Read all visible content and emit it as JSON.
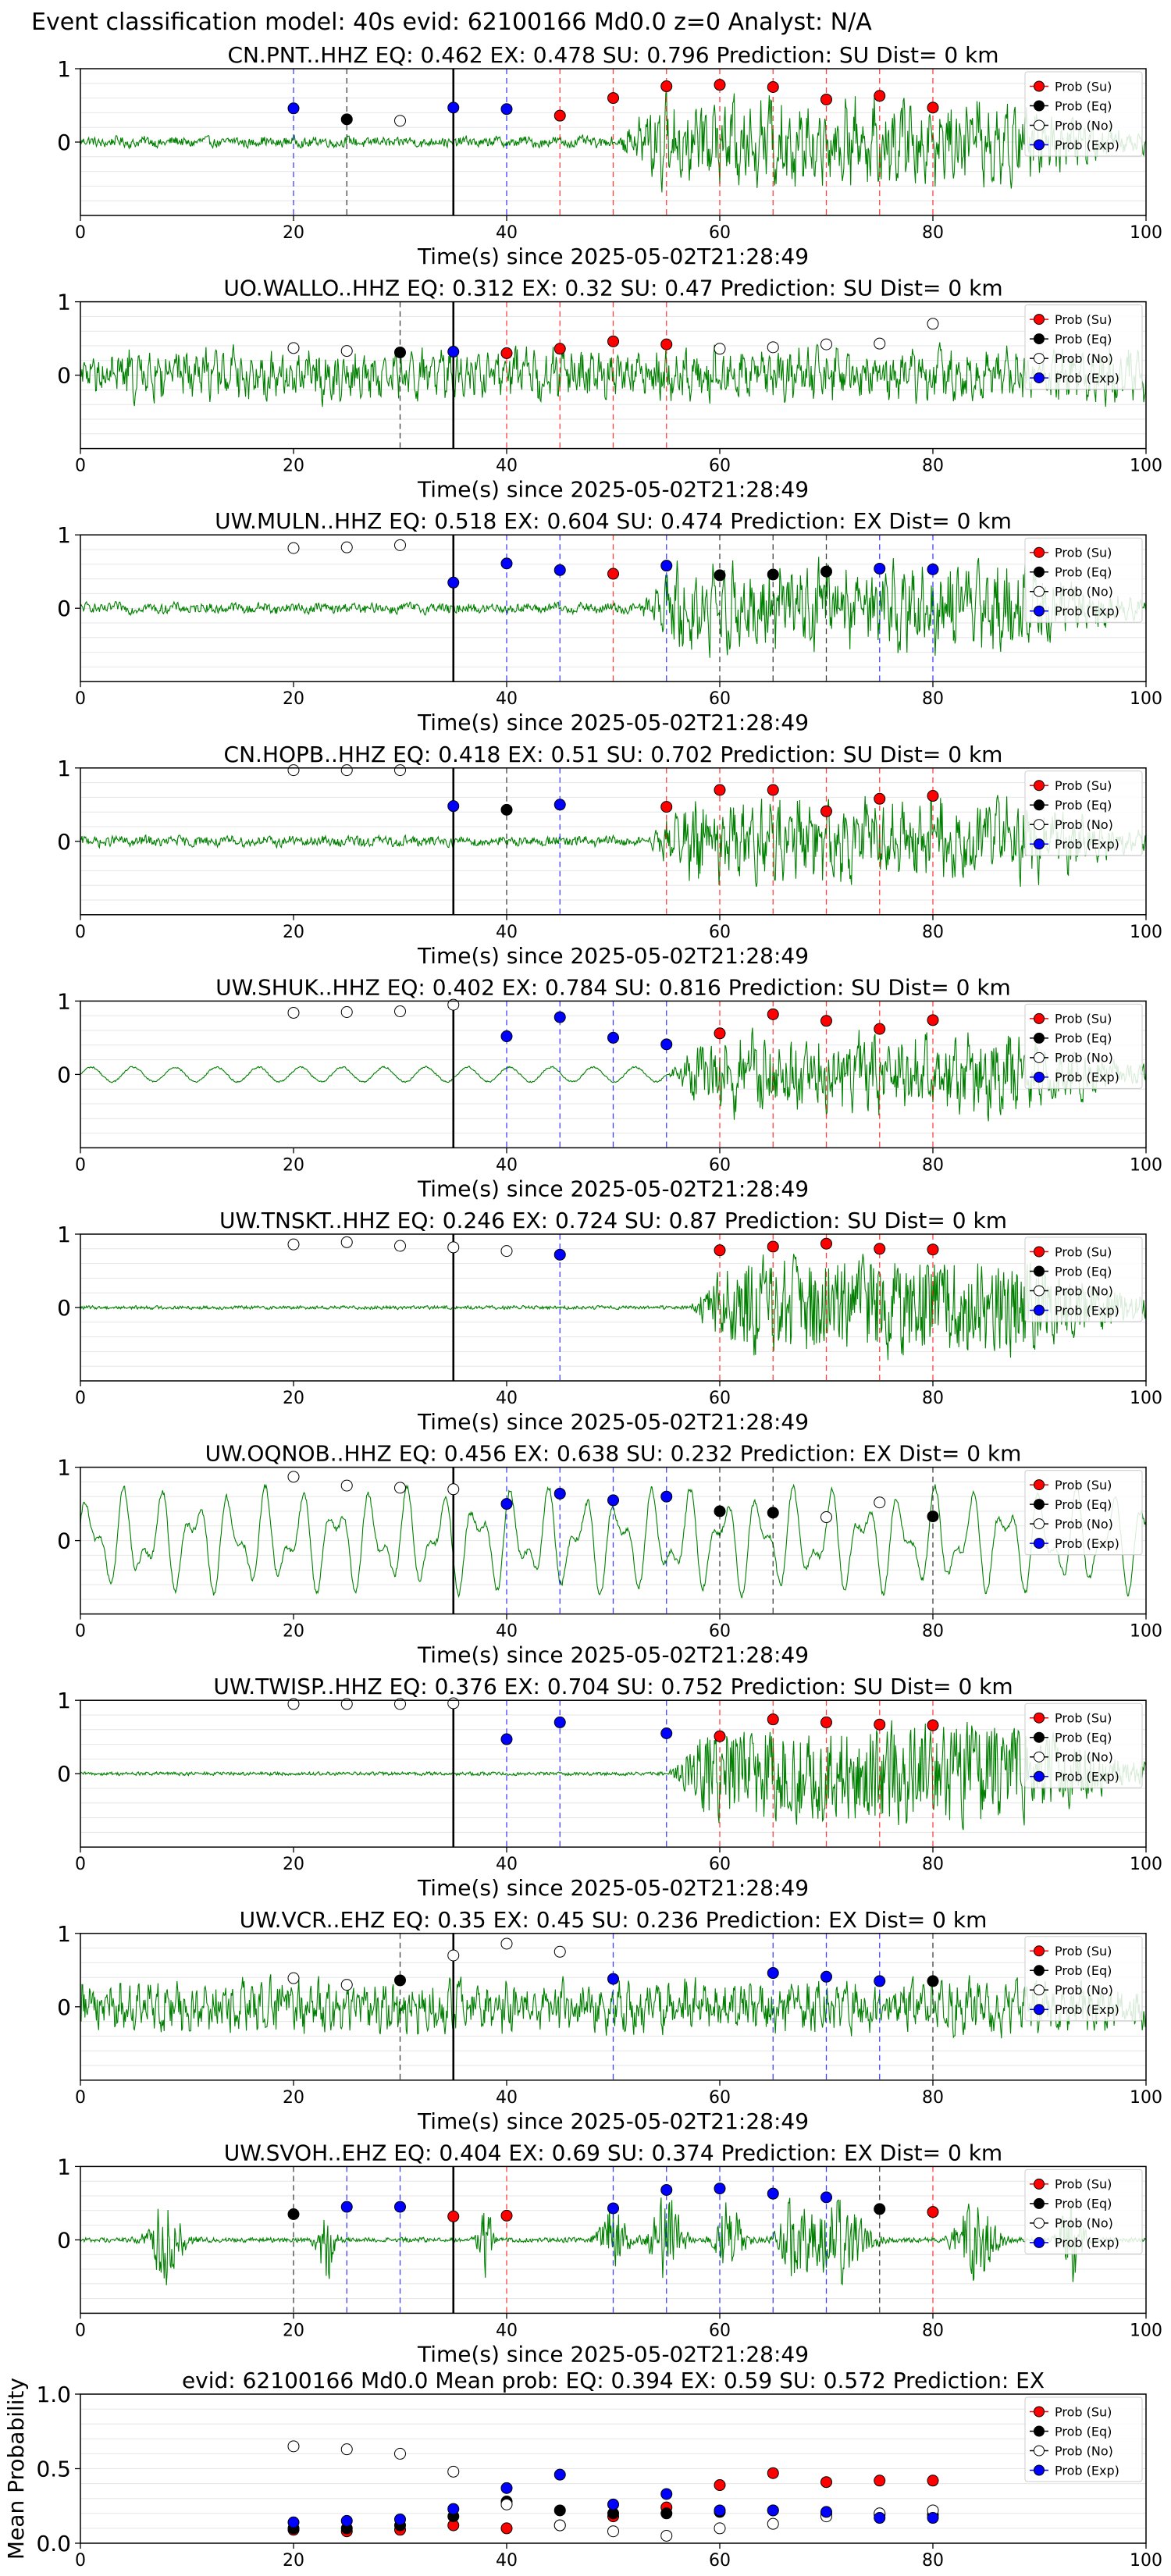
{
  "figure": {
    "title": "Event classification model: 40s evid: 62100166 Md0.0 z=0 Analyst: N/A"
  },
  "legend_labels": [
    "Prob (Su)",
    "Prob (Eq)",
    "Prob (No)",
    "Prob (Exp)"
  ],
  "colors": {
    "su": "#ff0000",
    "eq": "#000000",
    "no": "#ffffff",
    "exp": "#0000ff",
    "waveform": "#008000",
    "pick_line": "#000000"
  },
  "chart_data": [
    {
      "type": "scatter",
      "station": "CN.PNT..HHZ",
      "title": "CN.PNT..HHZ   EQ: 0.462  EX: 0.478  SU: 0.796   Prediction: SU    Dist= 0 km",
      "xlabel": "Time(s) since 2025-05-02T21:28:49",
      "xlim": [
        0,
        100
      ],
      "ylim": [
        -1,
        1
      ],
      "xticks": [
        0,
        20,
        40,
        60,
        80,
        100
      ],
      "yticks": [
        0,
        1
      ],
      "pick_time": 35,
      "signal": {
        "style": "noisy",
        "onset": 50
      },
      "points": [
        {
          "t": 20,
          "p": 0.46,
          "class": "exp"
        },
        {
          "t": 25,
          "p": 0.31,
          "class": "eq"
        },
        {
          "t": 30,
          "p": 0.29,
          "class": "no"
        },
        {
          "t": 35,
          "p": 0.47,
          "class": "exp"
        },
        {
          "t": 40,
          "p": 0.45,
          "class": "exp"
        },
        {
          "t": 45,
          "p": 0.36,
          "class": "su"
        },
        {
          "t": 50,
          "p": 0.6,
          "class": "su"
        },
        {
          "t": 55,
          "p": 0.76,
          "class": "su"
        },
        {
          "t": 60,
          "p": 0.78,
          "class": "su"
        },
        {
          "t": 65,
          "p": 0.75,
          "class": "su"
        },
        {
          "t": 70,
          "p": 0.58,
          "class": "su"
        },
        {
          "t": 75,
          "p": 0.63,
          "class": "su"
        },
        {
          "t": 80,
          "p": 0.47,
          "class": "su"
        }
      ]
    },
    {
      "type": "scatter",
      "station": "UO.WALLO..HHZ",
      "title": "UO.WALLO..HHZ   EQ: 0.312  EX: 0.32  SU: 0.47   Prediction: SU    Dist= 0 km",
      "xlabel": "Time(s) since 2025-05-02T21:28:49",
      "xlim": [
        0,
        100
      ],
      "ylim": [
        -1,
        1
      ],
      "xticks": [
        0,
        20,
        40,
        60,
        80,
        100
      ],
      "yticks": [
        0,
        1
      ],
      "pick_time": 35,
      "signal": {
        "style": "noisy",
        "onset": 0
      },
      "points": [
        {
          "t": 20,
          "p": 0.37,
          "class": "no"
        },
        {
          "t": 25,
          "p": 0.33,
          "class": "no"
        },
        {
          "t": 30,
          "p": 0.31,
          "class": "eq"
        },
        {
          "t": 35,
          "p": 0.32,
          "class": "exp"
        },
        {
          "t": 40,
          "p": 0.3,
          "class": "su"
        },
        {
          "t": 45,
          "p": 0.36,
          "class": "su"
        },
        {
          "t": 50,
          "p": 0.46,
          "class": "su"
        },
        {
          "t": 55,
          "p": 0.42,
          "class": "su"
        },
        {
          "t": 60,
          "p": 0.36,
          "class": "no"
        },
        {
          "t": 65,
          "p": 0.38,
          "class": "no"
        },
        {
          "t": 70,
          "p": 0.42,
          "class": "no"
        },
        {
          "t": 75,
          "p": 0.43,
          "class": "no"
        },
        {
          "t": 80,
          "p": 0.7,
          "class": "no"
        }
      ]
    },
    {
      "type": "scatter",
      "station": "UW.MULN..HHZ",
      "title": "UW.MULN..HHZ   EQ: 0.518  EX: 0.604  SU: 0.474   Prediction: EX    Dist= 0 km",
      "xlabel": "Time(s) since 2025-05-02T21:28:49",
      "xlim": [
        0,
        100
      ],
      "ylim": [
        -1,
        1
      ],
      "xticks": [
        0,
        20,
        40,
        60,
        80,
        100
      ],
      "yticks": [
        0,
        1
      ],
      "pick_time": 35,
      "signal": {
        "style": "noisy",
        "onset": 52
      },
      "points": [
        {
          "t": 20,
          "p": 0.82,
          "class": "no"
        },
        {
          "t": 25,
          "p": 0.83,
          "class": "no"
        },
        {
          "t": 30,
          "p": 0.86,
          "class": "no"
        },
        {
          "t": 35,
          "p": 0.35,
          "class": "exp"
        },
        {
          "t": 40,
          "p": 0.61,
          "class": "exp"
        },
        {
          "t": 45,
          "p": 0.52,
          "class": "exp"
        },
        {
          "t": 50,
          "p": 0.47,
          "class": "su"
        },
        {
          "t": 55,
          "p": 0.58,
          "class": "exp"
        },
        {
          "t": 60,
          "p": 0.45,
          "class": "eq"
        },
        {
          "t": 65,
          "p": 0.46,
          "class": "eq"
        },
        {
          "t": 70,
          "p": 0.5,
          "class": "eq"
        },
        {
          "t": 75,
          "p": 0.54,
          "class": "exp"
        },
        {
          "t": 80,
          "p": 0.53,
          "class": "exp"
        }
      ]
    },
    {
      "type": "scatter",
      "station": "CN.HOPB..HHZ",
      "title": "CN.HOPB..HHZ   EQ: 0.418  EX: 0.51  SU: 0.702   Prediction: SU    Dist= 0 km",
      "xlabel": "Time(s) since 2025-05-02T21:28:49",
      "xlim": [
        0,
        100
      ],
      "ylim": [
        -1,
        1
      ],
      "xticks": [
        0,
        20,
        40,
        60,
        80,
        100
      ],
      "yticks": [
        0,
        1
      ],
      "pick_time": 35,
      "signal": {
        "style": "noisy",
        "onset": 53
      },
      "points": [
        {
          "t": 20,
          "p": 0.97,
          "class": "no"
        },
        {
          "t": 25,
          "p": 0.97,
          "class": "no"
        },
        {
          "t": 30,
          "p": 0.97,
          "class": "no"
        },
        {
          "t": 35,
          "p": 0.48,
          "class": "exp"
        },
        {
          "t": 40,
          "p": 0.43,
          "class": "eq"
        },
        {
          "t": 45,
          "p": 0.5,
          "class": "exp"
        },
        {
          "t": 55,
          "p": 0.47,
          "class": "su"
        },
        {
          "t": 60,
          "p": 0.7,
          "class": "su"
        },
        {
          "t": 65,
          "p": 0.7,
          "class": "su"
        },
        {
          "t": 70,
          "p": 0.41,
          "class": "su"
        },
        {
          "t": 75,
          "p": 0.58,
          "class": "su"
        },
        {
          "t": 80,
          "p": 0.62,
          "class": "su"
        }
      ]
    },
    {
      "type": "scatter",
      "station": "UW.SHUK..HHZ",
      "title": "UW.SHUK..HHZ   EQ: 0.402  EX: 0.784  SU: 0.816   Prediction: SU    Dist= 0 km",
      "xlabel": "Time(s) since 2025-05-02T21:28:49",
      "xlim": [
        0,
        100
      ],
      "ylim": [
        -1,
        1
      ],
      "xticks": [
        0,
        20,
        40,
        60,
        80,
        100
      ],
      "yticks": [
        0,
        1
      ],
      "pick_time": 35,
      "signal": {
        "style": "wavy_then_noisy",
        "onset": 55
      },
      "points": [
        {
          "t": 20,
          "p": 0.84,
          "class": "no"
        },
        {
          "t": 25,
          "p": 0.85,
          "class": "no"
        },
        {
          "t": 30,
          "p": 0.86,
          "class": "no"
        },
        {
          "t": 35,
          "p": 0.95,
          "class": "no"
        },
        {
          "t": 40,
          "p": 0.52,
          "class": "exp"
        },
        {
          "t": 45,
          "p": 0.78,
          "class": "exp"
        },
        {
          "t": 50,
          "p": 0.5,
          "class": "exp"
        },
        {
          "t": 55,
          "p": 0.41,
          "class": "exp"
        },
        {
          "t": 60,
          "p": 0.56,
          "class": "su"
        },
        {
          "t": 65,
          "p": 0.82,
          "class": "su"
        },
        {
          "t": 70,
          "p": 0.73,
          "class": "su"
        },
        {
          "t": 75,
          "p": 0.62,
          "class": "su"
        },
        {
          "t": 80,
          "p": 0.74,
          "class": "su"
        }
      ]
    },
    {
      "type": "scatter",
      "station": "UW.TNSKT..HHZ",
      "title": "UW.TNSKT..HHZ   EQ: 0.246  EX: 0.724  SU: 0.87   Prediction: SU    Dist= 0 km",
      "xlabel": "Time(s) since 2025-05-02T21:28:49",
      "xlim": [
        0,
        100
      ],
      "ylim": [
        -1,
        1
      ],
      "xticks": [
        0,
        20,
        40,
        60,
        80,
        100
      ],
      "yticks": [
        0,
        1
      ],
      "pick_time": 35,
      "signal": {
        "style": "flat_then_noisy",
        "onset": 57
      },
      "points": [
        {
          "t": 20,
          "p": 0.86,
          "class": "no"
        },
        {
          "t": 25,
          "p": 0.89,
          "class": "no"
        },
        {
          "t": 30,
          "p": 0.84,
          "class": "no"
        },
        {
          "t": 35,
          "p": 0.82,
          "class": "no"
        },
        {
          "t": 40,
          "p": 0.77,
          "class": "no"
        },
        {
          "t": 45,
          "p": 0.72,
          "class": "exp"
        },
        {
          "t": 60,
          "p": 0.78,
          "class": "su"
        },
        {
          "t": 65,
          "p": 0.83,
          "class": "su"
        },
        {
          "t": 70,
          "p": 0.87,
          "class": "su"
        },
        {
          "t": 75,
          "p": 0.8,
          "class": "su"
        },
        {
          "t": 80,
          "p": 0.79,
          "class": "su"
        }
      ]
    },
    {
      "type": "scatter",
      "station": "UW.OQNOB..HHZ",
      "title": "UW.OQNOB..HHZ   EQ: 0.456  EX: 0.638  SU: 0.232   Prediction: EX    Dist= 0 km",
      "xlabel": "Time(s) since 2025-05-02T21:28:49",
      "xlim": [
        0,
        100
      ],
      "ylim": [
        -1,
        1
      ],
      "xticks": [
        0,
        20,
        40,
        60,
        80,
        100
      ],
      "yticks": [
        0,
        1
      ],
      "pick_time": 35,
      "signal": {
        "style": "wavy",
        "onset": 0
      },
      "points": [
        {
          "t": 20,
          "p": 0.87,
          "class": "no"
        },
        {
          "t": 25,
          "p": 0.75,
          "class": "no"
        },
        {
          "t": 30,
          "p": 0.72,
          "class": "no"
        },
        {
          "t": 35,
          "p": 0.7,
          "class": "no"
        },
        {
          "t": 40,
          "p": 0.5,
          "class": "exp"
        },
        {
          "t": 45,
          "p": 0.64,
          "class": "exp"
        },
        {
          "t": 50,
          "p": 0.55,
          "class": "exp"
        },
        {
          "t": 55,
          "p": 0.6,
          "class": "exp"
        },
        {
          "t": 60,
          "p": 0.4,
          "class": "eq"
        },
        {
          "t": 65,
          "p": 0.38,
          "class": "eq"
        },
        {
          "t": 70,
          "p": 0.32,
          "class": "no"
        },
        {
          "t": 75,
          "p": 0.52,
          "class": "no"
        },
        {
          "t": 80,
          "p": 0.33,
          "class": "eq"
        }
      ]
    },
    {
      "type": "scatter",
      "station": "UW.TWISP..HHZ",
      "title": "UW.TWISP..HHZ   EQ: 0.376  EX: 0.704  SU: 0.752   Prediction: SU    Dist= 0 km",
      "xlabel": "Time(s) since 2025-05-02T21:28:49",
      "xlim": [
        0,
        100
      ],
      "ylim": [
        -1,
        1
      ],
      "xticks": [
        0,
        20,
        40,
        60,
        80,
        100
      ],
      "yticks": [
        0,
        1
      ],
      "pick_time": 35,
      "signal": {
        "style": "flat_then_noisy",
        "onset": 55
      },
      "points": [
        {
          "t": 20,
          "p": 0.95,
          "class": "no"
        },
        {
          "t": 25,
          "p": 0.95,
          "class": "no"
        },
        {
          "t": 30,
          "p": 0.95,
          "class": "no"
        },
        {
          "t": 35,
          "p": 0.96,
          "class": "no"
        },
        {
          "t": 40,
          "p": 0.47,
          "class": "exp"
        },
        {
          "t": 45,
          "p": 0.7,
          "class": "exp"
        },
        {
          "t": 55,
          "p": 0.55,
          "class": "exp"
        },
        {
          "t": 60,
          "p": 0.51,
          "class": "su"
        },
        {
          "t": 65,
          "p": 0.74,
          "class": "su"
        },
        {
          "t": 70,
          "p": 0.7,
          "class": "su"
        },
        {
          "t": 75,
          "p": 0.67,
          "class": "su"
        },
        {
          "t": 80,
          "p": 0.66,
          "class": "su"
        }
      ]
    },
    {
      "type": "scatter",
      "station": "UW.VCR..EHZ",
      "title": "UW.VCR..EHZ   EQ: 0.35  EX: 0.45  SU: 0.236   Prediction: EX    Dist= 0 km",
      "xlabel": "Time(s) since 2025-05-02T21:28:49",
      "xlim": [
        0,
        100
      ],
      "ylim": [
        -1,
        1
      ],
      "xticks": [
        0,
        20,
        40,
        60,
        80,
        100
      ],
      "yticks": [
        0,
        1
      ],
      "pick_time": 35,
      "signal": {
        "style": "noisy",
        "onset": 0
      },
      "points": [
        {
          "t": 20,
          "p": 0.39,
          "class": "no"
        },
        {
          "t": 25,
          "p": 0.3,
          "class": "no"
        },
        {
          "t": 30,
          "p": 0.36,
          "class": "eq"
        },
        {
          "t": 35,
          "p": 0.7,
          "class": "no"
        },
        {
          "t": 40,
          "p": 0.86,
          "class": "no"
        },
        {
          "t": 45,
          "p": 0.75,
          "class": "no"
        },
        {
          "t": 50,
          "p": 0.38,
          "class": "exp"
        },
        {
          "t": 65,
          "p": 0.46,
          "class": "exp"
        },
        {
          "t": 70,
          "p": 0.41,
          "class": "exp"
        },
        {
          "t": 75,
          "p": 0.35,
          "class": "exp"
        },
        {
          "t": 80,
          "p": 0.35,
          "class": "eq"
        }
      ]
    },
    {
      "type": "scatter",
      "station": "UW.SVOH..EHZ",
      "title": "UW.SVOH..EHZ   EQ: 0.404  EX: 0.69  SU: 0.374   Prediction: EX    Dist= 0 km",
      "xlabel": "Time(s) since 2025-05-02T21:28:49",
      "xlim": [
        0,
        100
      ],
      "ylim": [
        -1,
        1
      ],
      "xticks": [
        0,
        20,
        40,
        60,
        80,
        100
      ],
      "yticks": [
        0,
        1
      ],
      "pick_time": 35,
      "signal": {
        "style": "bursts",
        "onset": 0
      },
      "points": [
        {
          "t": 20,
          "p": 0.35,
          "class": "eq"
        },
        {
          "t": 25,
          "p": 0.45,
          "class": "exp"
        },
        {
          "t": 30,
          "p": 0.45,
          "class": "exp"
        },
        {
          "t": 35,
          "p": 0.32,
          "class": "su"
        },
        {
          "t": 40,
          "p": 0.33,
          "class": "su"
        },
        {
          "t": 50,
          "p": 0.43,
          "class": "exp"
        },
        {
          "t": 55,
          "p": 0.68,
          "class": "exp"
        },
        {
          "t": 60,
          "p": 0.7,
          "class": "exp"
        },
        {
          "t": 65,
          "p": 0.63,
          "class": "exp"
        },
        {
          "t": 70,
          "p": 0.58,
          "class": "exp"
        },
        {
          "t": 75,
          "p": 0.42,
          "class": "eq"
        },
        {
          "t": 80,
          "p": 0.38,
          "class": "su"
        }
      ]
    },
    {
      "type": "scatter",
      "title": "evid: 62100166  Md0.0   Mean prob:   EQ: 0.394  EX: 0.59  SU: 0.572   Prediction: EX",
      "ylabel": "Mean Probability",
      "xlim": [
        0,
        100
      ],
      "ylim": [
        0,
        1
      ],
      "xticks": [
        0,
        20,
        40,
        60,
        80,
        100
      ],
      "yticks": [
        0.0,
        0.5,
        1.0
      ],
      "x": [
        20,
        25,
        30,
        35,
        40,
        45,
        50,
        55,
        60,
        65,
        70,
        75,
        80
      ],
      "series": [
        {
          "name": "Prob (Su)",
          "key": "su",
          "values": [
            0.09,
            0.08,
            0.09,
            0.12,
            0.1,
            0.12,
            0.18,
            0.24,
            0.39,
            0.47,
            0.41,
            0.42,
            0.42
          ]
        },
        {
          "name": "Prob (Eq)",
          "key": "eq",
          "values": [
            0.1,
            0.1,
            0.12,
            0.18,
            0.28,
            0.22,
            0.2,
            0.2,
            0.21,
            0.22,
            0.2,
            0.19,
            0.19
          ]
        },
        {
          "name": "Prob (No)",
          "key": "no",
          "values": [
            0.65,
            0.63,
            0.6,
            0.48,
            0.26,
            0.12,
            0.08,
            0.05,
            0.1,
            0.13,
            0.18,
            0.2,
            0.22
          ]
        },
        {
          "name": "Prob (Exp)",
          "key": "exp",
          "values": [
            0.14,
            0.15,
            0.16,
            0.23,
            0.37,
            0.46,
            0.26,
            0.33,
            0.22,
            0.22,
            0.21,
            0.17,
            0.17
          ]
        }
      ]
    }
  ]
}
